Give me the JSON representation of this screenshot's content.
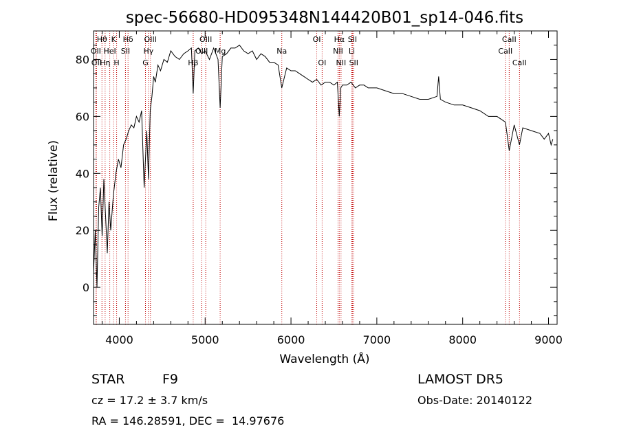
{
  "chart_data": {
    "type": "line",
    "title": "spec-56680-HD095348N144420B01_sp14-046.fits",
    "xlabel": "Wavelength (Å)",
    "ylabel": "Flux (relative)",
    "xlim": [
      3700,
      9100
    ],
    "ylim": [
      -13,
      90
    ],
    "x_ticks": [
      4000,
      5000,
      6000,
      7000,
      8000,
      9000
    ],
    "y_ticks": [
      0,
      20,
      40,
      60,
      80
    ],
    "grid": false,
    "series": [
      {
        "x": [
          3700,
          3720,
          3740,
          3760,
          3780,
          3800,
          3820,
          3840,
          3860,
          3880,
          3900,
          3930,
          3960,
          3990,
          4020,
          4050,
          4080,
          4110,
          4140,
          4170,
          4200,
          4230,
          4260,
          4290,
          4320,
          4340,
          4360,
          4380,
          4400,
          4420,
          4450,
          4480,
          4520,
          4560,
          4600,
          4650,
          4700,
          4750,
          4800,
          4840,
          4861,
          4880,
          4920,
          4960,
          5000,
          5050,
          5100,
          5150,
          5175,
          5200,
          5250,
          5300,
          5350,
          5400,
          5450,
          5500,
          5550,
          5600,
          5650,
          5700,
          5750,
          5800,
          5850,
          5893,
          5950,
          6000,
          6050,
          6100,
          6150,
          6200,
          6250,
          6300,
          6350,
          6400,
          6450,
          6500,
          6540,
          6563,
          6580,
          6600,
          6650,
          6700,
          6750,
          6800,
          6850,
          6900,
          6950,
          7000,
          7100,
          7200,
          7300,
          7400,
          7500,
          7600,
          7700,
          7720,
          7740,
          7800,
          7900,
          8000,
          8100,
          8200,
          8300,
          8400,
          8498,
          8542,
          8600,
          8662,
          8700,
          8800,
          8900,
          8950,
          9000,
          9030,
          9050
        ],
        "y": [
          5,
          20,
          0,
          28,
          35,
          18,
          38,
          25,
          12,
          30,
          20,
          32,
          40,
          45,
          42,
          50,
          52,
          55,
          57,
          56,
          60,
          58,
          62,
          35,
          55,
          38,
          62,
          67,
          74,
          72,
          78,
          76,
          80,
          79,
          83,
          81,
          80,
          82,
          83,
          84,
          68,
          83,
          84,
          82,
          83,
          80,
          84,
          80,
          63,
          81,
          82,
          84,
          84,
          85,
          83,
          82,
          83,
          80,
          82,
          81,
          79,
          79,
          78,
          70,
          77,
          76,
          76,
          75,
          74,
          73,
          72,
          73,
          71,
          72,
          72,
          71,
          72,
          60,
          70,
          71,
          71,
          72,
          70,
          71,
          71,
          70,
          70,
          70,
          69,
          68,
          68,
          67,
          66,
          66,
          67,
          74,
          66,
          65,
          64,
          64,
          63,
          62,
          60,
          60,
          58,
          48,
          57,
          50,
          56,
          55,
          54,
          52,
          54,
          50,
          52
        ]
      }
    ],
    "lines": [
      {
        "label": "Hθ",
        "x": 3798,
        "row": 0
      },
      {
        "label": "OII",
        "x": 3727,
        "row": 1
      },
      {
        "label": "OII",
        "x": 3735,
        "row": 2
      },
      {
        "label": "K",
        "x": 3934,
        "row": 0
      },
      {
        "label": "HeI",
        "x": 3889,
        "row": 1
      },
      {
        "label": "Hη",
        "x": 3835,
        "row": 2
      },
      {
        "label": "Hδ",
        "x": 4102,
        "row": 0
      },
      {
        "label": "SII",
        "x": 4072,
        "row": 1
      },
      {
        "label": "H",
        "x": 3969,
        "row": 2
      },
      {
        "label": "OIII",
        "x": 4363,
        "row": 0
      },
      {
        "label": "Hγ",
        "x": 4340,
        "row": 1
      },
      {
        "label": "G",
        "x": 4305,
        "row": 2
      },
      {
        "label": "OIII",
        "x": 5007,
        "row": 0
      },
      {
        "label": "OIII",
        "x": 4959,
        "row": 1
      },
      {
        "label": "Mg",
        "x": 5175,
        "row": 1
      },
      {
        "label": "Hβ",
        "x": 4861,
        "row": 2
      },
      {
        "label": "Na",
        "x": 5893,
        "row": 1
      },
      {
        "label": "OI",
        "x": 6300,
        "row": 0
      },
      {
        "label": "OI",
        "x": 6363,
        "row": 2
      },
      {
        "label": "Hα",
        "x": 6563,
        "row": 0
      },
      {
        "label": "NII",
        "x": 6548,
        "row": 1
      },
      {
        "label": "NII",
        "x": 6583,
        "row": 2
      },
      {
        "label": "SII",
        "x": 6716,
        "row": 0
      },
      {
        "label": "Li",
        "x": 6708,
        "row": 1
      },
      {
        "label": "SII",
        "x": 6731,
        "row": 2
      },
      {
        "label": "CaII",
        "x": 8542,
        "row": 0
      },
      {
        "label": "CaII",
        "x": 8498,
        "row": 1
      },
      {
        "label": "CaII",
        "x": 8662,
        "row": 2
      }
    ]
  },
  "info": {
    "object_type": "STAR",
    "subclass": "F9",
    "survey": "LAMOST DR5",
    "cz": "cz = 17.2 ± 3.7 km/s",
    "obs_date": "Obs-Date: 20140122",
    "coords": "RA = 146.28591, DEC =  14.97676"
  }
}
